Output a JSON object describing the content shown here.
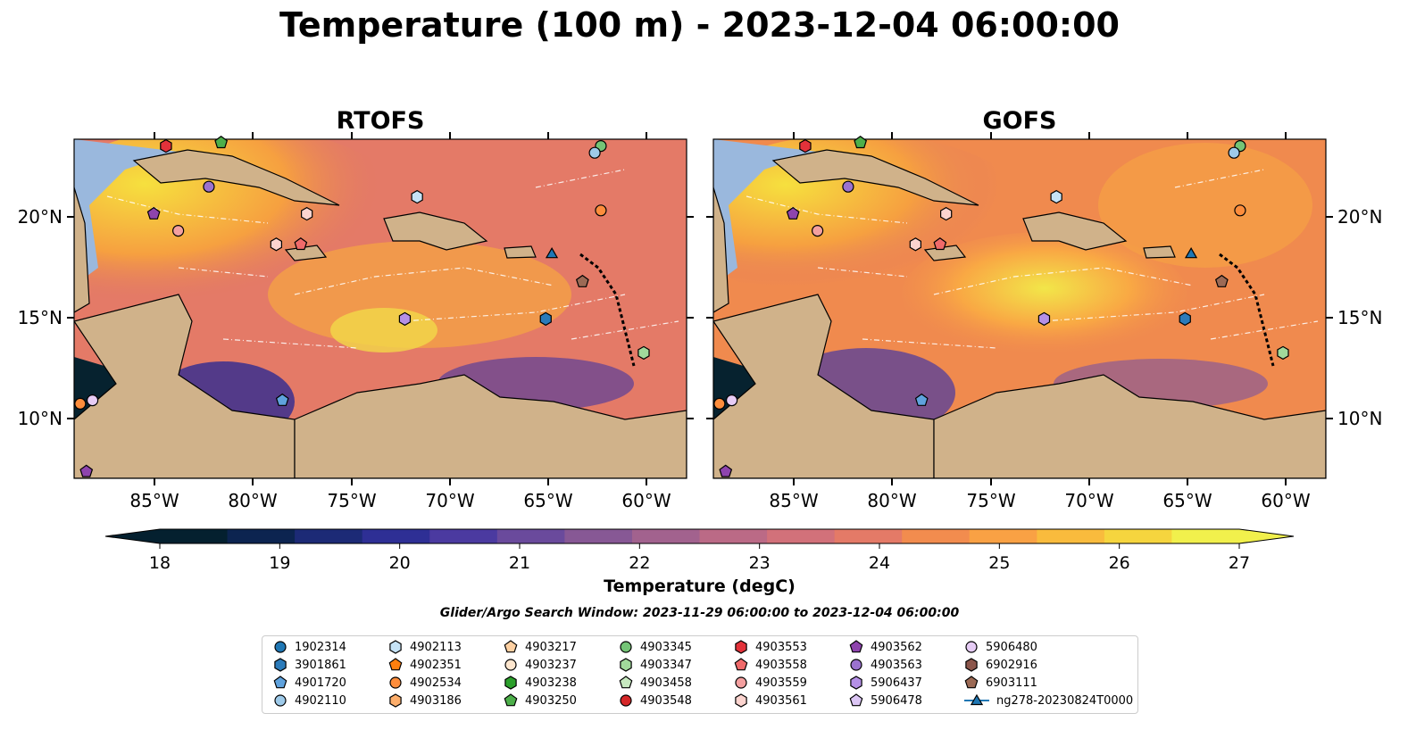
{
  "title": "Temperature (100 m) - 2023-12-04 06:00:00",
  "panels": [
    {
      "title": "RTOFS",
      "warm_field": "#f6e03e"
    },
    {
      "title": "GOFS",
      "warm_field": "#f8b840"
    }
  ],
  "lon_labels": [
    "85°W",
    "80°W",
    "75°W",
    "70°W",
    "65°W",
    "60°W"
  ],
  "lat_labels": [
    "20°N",
    "15°N",
    "10°N"
  ],
  "colorbar": {
    "title": "Temperature (degC)",
    "min": 18,
    "max": 27,
    "ticks": [
      "18",
      "19",
      "20",
      "21",
      "22",
      "23",
      "24",
      "25",
      "26",
      "27"
    ],
    "colors": [
      "#04202f",
      "#0c2450",
      "#1c2a76",
      "#2e2f95",
      "#4b3aa0",
      "#6a4a9c",
      "#875895",
      "#a2628e",
      "#bb6a86",
      "#d2717a",
      "#e47a67",
      "#f28c4e",
      "#f9a144",
      "#f9bb3d",
      "#f6d53e",
      "#f1f04c"
    ]
  },
  "search_window": "Glider/Argo Search Window: 2023-11-29 06:00:00 to 2023-12-04 06:00:00",
  "legend": [
    {
      "id": "1902314",
      "color": "#1f77b4",
      "shape": "circle"
    },
    {
      "id": "3901861",
      "color": "#2b7bba",
      "shape": "hexagon"
    },
    {
      "id": "4901720",
      "color": "#5fa2dd",
      "shape": "pentagon"
    },
    {
      "id": "4902110",
      "color": "#9ecae9",
      "shape": "circle"
    },
    {
      "id": "4902113",
      "color": "#c6e3f7",
      "shape": "hexagon"
    },
    {
      "id": "4902351",
      "color": "#ff7f0e",
      "shape": "pentagon"
    },
    {
      "id": "4902534",
      "color": "#fd8d3c",
      "shape": "circle"
    },
    {
      "id": "4903186",
      "color": "#fdae6b",
      "shape": "hexagon"
    },
    {
      "id": "4903217",
      "color": "#fdd0a2",
      "shape": "pentagon"
    },
    {
      "id": "4903237",
      "color": "#fee6ce",
      "shape": "circle"
    },
    {
      "id": "4903238",
      "color": "#2ca02c",
      "shape": "hexagon"
    },
    {
      "id": "4903250",
      "color": "#4daf4a",
      "shape": "pentagon"
    },
    {
      "id": "4903345",
      "color": "#74c476",
      "shape": "circle"
    },
    {
      "id": "4903347",
      "color": "#a1d99b",
      "shape": "hexagon"
    },
    {
      "id": "4903458",
      "color": "#c7e9c0",
      "shape": "pentagon"
    },
    {
      "id": "4903548",
      "color": "#d62728",
      "shape": "circle"
    },
    {
      "id": "4903553",
      "color": "#e3323a",
      "shape": "hexagon"
    },
    {
      "id": "4903558",
      "color": "#f06a6a",
      "shape": "pentagon"
    },
    {
      "id": "4903559",
      "color": "#f4a0a0",
      "shape": "circle"
    },
    {
      "id": "4903561",
      "color": "#fcd4cf",
      "shape": "hexagon"
    },
    {
      "id": "4903562",
      "color": "#8e44ad",
      "shape": "pentagon"
    },
    {
      "id": "4903563",
      "color": "#9b72cf",
      "shape": "circle"
    },
    {
      "id": "5906437",
      "color": "#b590e6",
      "shape": "hexagon"
    },
    {
      "id": "5906478",
      "color": "#dcc6f5",
      "shape": "pentagon"
    },
    {
      "id": "5906480",
      "color": "#e6ccf5",
      "shape": "circle"
    },
    {
      "id": "6902916",
      "color": "#8c564b",
      "shape": "hexagon"
    },
    {
      "id": "6903111",
      "color": "#9c6a55",
      "shape": "pentagon"
    },
    {
      "id": "ng278-20230824T0000",
      "color": "#1f77b4",
      "shape": "triangle-line"
    }
  ]
}
